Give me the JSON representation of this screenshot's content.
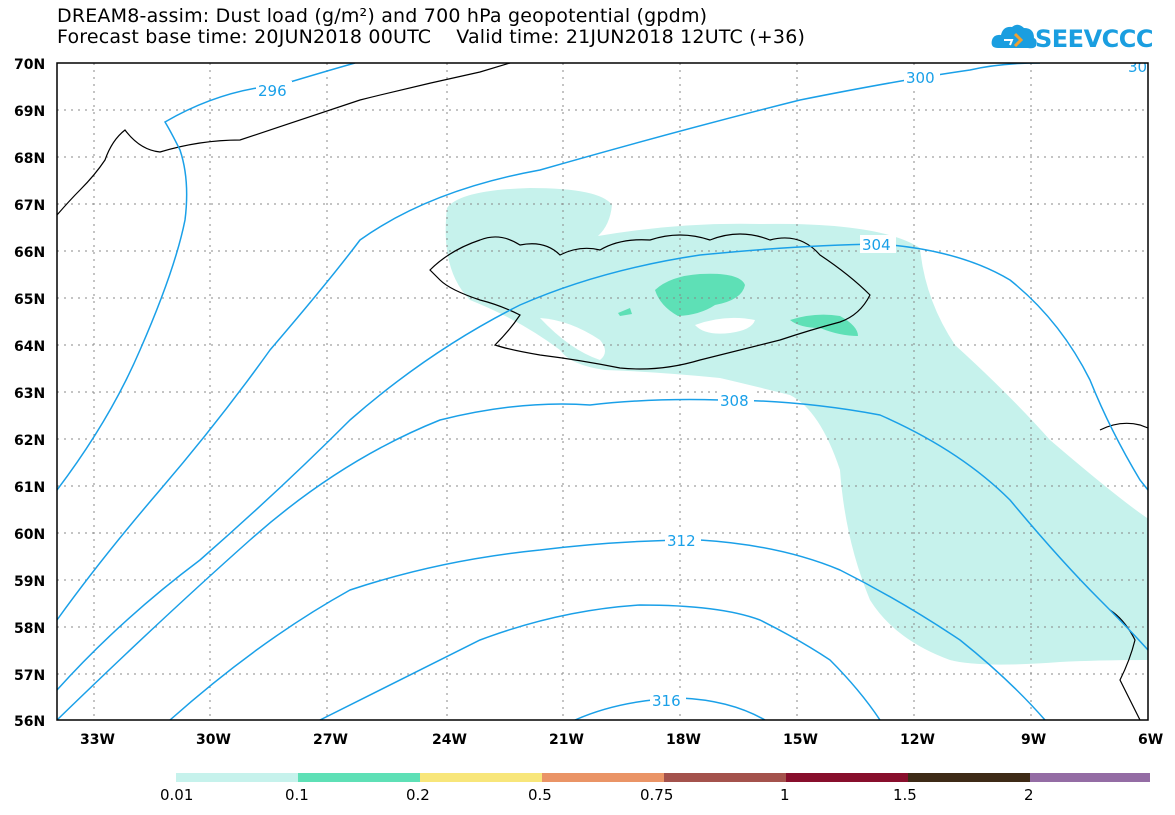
{
  "title": {
    "line1": "DREAM8-assim: Dust load (g/m²) and 700 hPa geopotential (gpdm)",
    "line2": "Forecast base time: 20JUN2018 00UTC    Valid time: 21JUN2018 12UTC (+36)"
  },
  "logo": {
    "text": "SEEVCCC"
  },
  "map": {
    "lon_labels": [
      "33W",
      "30W",
      "27W",
      "24W",
      "21W",
      "18W",
      "15W",
      "12W",
      "9W",
      "6W"
    ],
    "lat_labels": [
      "70N",
      "69N",
      "68N",
      "67N",
      "66N",
      "65N",
      "64N",
      "63N",
      "62N",
      "61N",
      "60N",
      "59N",
      "58N",
      "57N",
      "56N"
    ],
    "contour_labels": [
      "296",
      "300",
      "30",
      "304",
      "308",
      "312",
      "316"
    ],
    "colors": {
      "contour": "#1aa0e8",
      "coast": "#000000",
      "dust_low": "#c6f2ec",
      "dust_mid": "#5ee0b6"
    }
  },
  "legend": {
    "labels": [
      "0.01",
      "0.1",
      "0.2",
      "0.5",
      "0.75",
      "1",
      "1.5",
      "2"
    ],
    "colors": [
      "#c6f2ec",
      "#5ee0b6",
      "#f8e67a",
      "#ea9466",
      "#a4524c",
      "#880e2c",
      "#3e2a16",
      "#946ca4"
    ]
  }
}
